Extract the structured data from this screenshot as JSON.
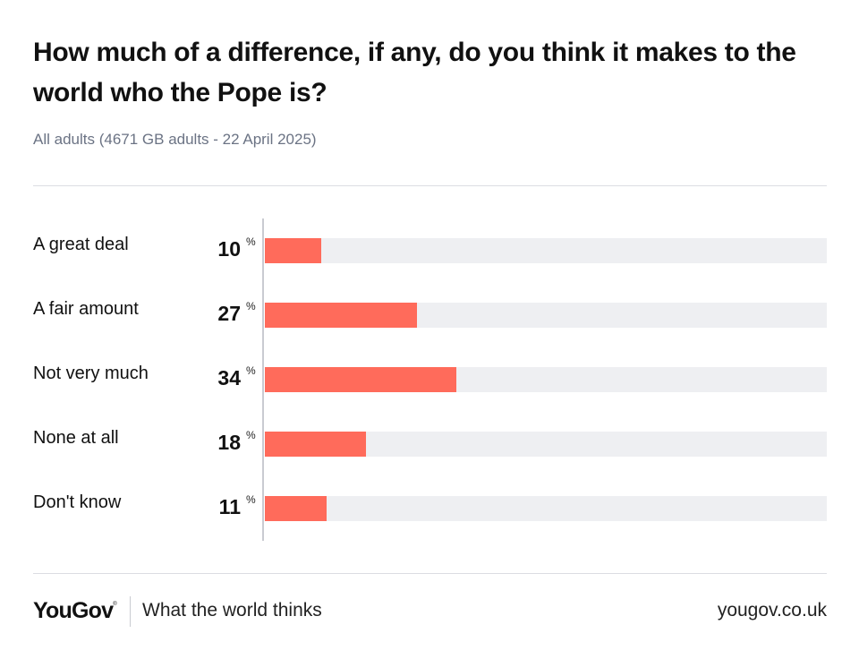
{
  "title": "How much of a difference, if any, do you think it makes to the world who the Pope is?",
  "subtitle": "All adults (4671 GB adults - 22 April 2025)",
  "chart_data": {
    "type": "bar",
    "orientation": "horizontal",
    "title": "How much of a difference, if any, do you think it makes to the world who the Pope is?",
    "subtitle": "All adults (4671 GB adults - 22 April 2025)",
    "categories": [
      "A great deal",
      "A fair amount",
      "Not very much",
      "None at all",
      "Don't know"
    ],
    "values": [
      10,
      27,
      34,
      18,
      11
    ],
    "unit": "%",
    "xlim": [
      0,
      100
    ],
    "bar_color": "#ff6b5b",
    "track_color": "#eeeff2",
    "grid": false,
    "legend": "none"
  },
  "footer": {
    "logo": "YouGov",
    "logo_mark": "®",
    "tagline": "What the world thinks",
    "website": "yougov.co.uk"
  }
}
